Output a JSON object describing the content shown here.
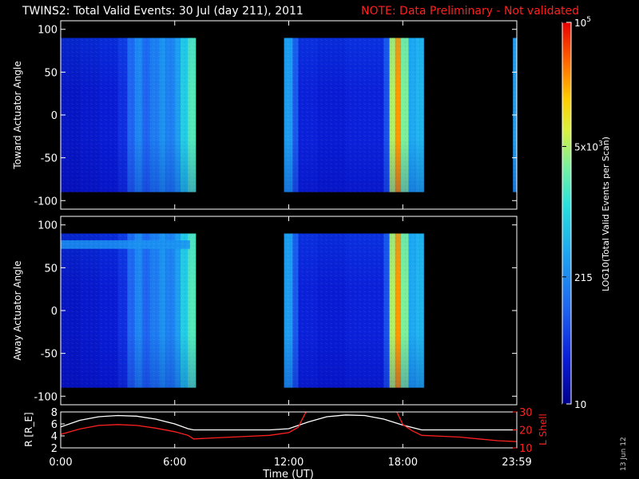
{
  "header": {
    "title": "TWINS2: Total Valid Events: 30 Jul (day 211), 2011",
    "note": "NOTE: Data Preliminary - Not validated"
  },
  "footer": {
    "stamp": "13 Jun 12"
  },
  "colors": {
    "note": "#ff2020",
    "r_line": "#ffffff",
    "lshell_line": "#ff2020",
    "background": "#000000"
  },
  "chart_data": [
    {
      "type": "heatmap",
      "ylabel": "Toward Actuator Angle",
      "ylim": [
        -110,
        110
      ],
      "yticks": [
        100,
        50,
        0,
        -50,
        -100
      ],
      "xlim": [
        0,
        24
      ],
      "data_y_range": [
        -90,
        90
      ],
      "data_coverage_hours": [
        [
          0,
          7.1
        ],
        [
          11.75,
          19.1
        ],
        [
          23.8,
          24
        ]
      ],
      "columns": [
        {
          "x0": 0.0,
          "x1": 1.0,
          "log": 1.35
        },
        {
          "x0": 1.0,
          "x1": 2.0,
          "log": 1.4
        },
        {
          "x0": 2.0,
          "x1": 3.0,
          "log": 1.45
        },
        {
          "x0": 3.0,
          "x1": 3.5,
          "log": 1.6
        },
        {
          "x0": 3.5,
          "x1": 3.9,
          "log": 2.0
        },
        {
          "x0": 3.9,
          "x1": 4.3,
          "log": 2.3
        },
        {
          "x0": 4.3,
          "x1": 4.7,
          "log": 2.0
        },
        {
          "x0": 4.7,
          "x1": 5.2,
          "log": 2.2
        },
        {
          "x0": 5.2,
          "x1": 5.5,
          "log": 2.4
        },
        {
          "x0": 5.5,
          "x1": 6.0,
          "log": 2.25
        },
        {
          "x0": 6.0,
          "x1": 6.3,
          "log": 2.5
        },
        {
          "x0": 6.3,
          "x1": 6.7,
          "log": 2.9
        },
        {
          "x0": 6.7,
          "x1": 7.1,
          "log": 3.3
        },
        {
          "x0": 11.75,
          "x1": 12.2,
          "log": 2.5
        },
        {
          "x0": 12.2,
          "x1": 12.5,
          "log": 1.9
        },
        {
          "x0": 12.5,
          "x1": 13.5,
          "log": 1.5
        },
        {
          "x0": 13.5,
          "x1": 15.0,
          "log": 1.45
        },
        {
          "x0": 15.0,
          "x1": 17.0,
          "log": 1.5
        },
        {
          "x0": 17.0,
          "x1": 17.3,
          "log": 1.85
        },
        {
          "x0": 17.3,
          "x1": 17.6,
          "log": 3.7
        },
        {
          "x0": 17.6,
          "x1": 17.9,
          "log": 4.4
        },
        {
          "x0": 17.9,
          "x1": 18.3,
          "log": 3.5
        },
        {
          "x0": 18.3,
          "x1": 18.7,
          "log": 2.6
        },
        {
          "x0": 18.7,
          "x1": 19.1,
          "log": 2.7
        },
        {
          "x0": 23.8,
          "x1": 24.0,
          "log": 2.5
        }
      ]
    },
    {
      "type": "heatmap",
      "ylabel": "Away Actuator Angle",
      "ylim": [
        -110,
        110
      ],
      "yticks": [
        100,
        50,
        0,
        -50,
        -100
      ],
      "xlim": [
        0,
        24
      ],
      "data_y_range": [
        -90,
        90
      ],
      "data_coverage_hours": [
        [
          0,
          7.1
        ],
        [
          11.75,
          19.1
        ]
      ],
      "columns": [
        {
          "x0": 0.0,
          "x1": 1.0,
          "log": 1.35
        },
        {
          "x0": 1.0,
          "x1": 2.0,
          "log": 1.4
        },
        {
          "x0": 2.0,
          "x1": 3.0,
          "log": 1.45
        },
        {
          "x0": 3.0,
          "x1": 3.5,
          "log": 1.6
        },
        {
          "x0": 3.5,
          "x1": 3.9,
          "log": 2.0
        },
        {
          "x0": 3.9,
          "x1": 4.3,
          "log": 2.3
        },
        {
          "x0": 4.3,
          "x1": 4.7,
          "log": 2.0
        },
        {
          "x0": 4.7,
          "x1": 5.2,
          "log": 2.2
        },
        {
          "x0": 5.2,
          "x1": 5.5,
          "log": 2.4
        },
        {
          "x0": 5.5,
          "x1": 6.0,
          "log": 2.25
        },
        {
          "x0": 6.0,
          "x1": 6.3,
          "log": 2.5
        },
        {
          "x0": 6.3,
          "x1": 6.7,
          "log": 2.9
        },
        {
          "x0": 6.7,
          "x1": 7.1,
          "log": 3.3
        },
        {
          "x0": 11.75,
          "x1": 12.2,
          "log": 2.5
        },
        {
          "x0": 12.2,
          "x1": 12.5,
          "log": 1.9
        },
        {
          "x0": 12.5,
          "x1": 13.5,
          "log": 1.5
        },
        {
          "x0": 13.5,
          "x1": 15.0,
          "log": 1.45
        },
        {
          "x0": 15.0,
          "x1": 17.0,
          "log": 1.5
        },
        {
          "x0": 17.0,
          "x1": 17.3,
          "log": 1.85
        },
        {
          "x0": 17.3,
          "x1": 17.6,
          "log": 3.7
        },
        {
          "x0": 17.6,
          "x1": 17.9,
          "log": 4.4
        },
        {
          "x0": 17.9,
          "x1": 18.3,
          "log": 3.5
        },
        {
          "x0": 18.3,
          "x1": 18.7,
          "log": 2.6
        },
        {
          "x0": 18.7,
          "x1": 19.1,
          "log": 2.7
        }
      ],
      "band": {
        "x0": 0.0,
        "x1": 6.8,
        "y0": 72,
        "y1": 82,
        "log": 2.4
      }
    },
    {
      "type": "line",
      "xlabel": "Time (UT)",
      "ylabel": "R [R_E]",
      "y2label": "L Shell",
      "xticks": [
        "0:00",
        "6:00",
        "12:00",
        "18:00",
        "23:59"
      ],
      "xtick_values": [
        0,
        6,
        12,
        18,
        24
      ],
      "ylim": [
        2,
        8
      ],
      "yticks": [
        2,
        4,
        6,
        8
      ],
      "y2lim": [
        10,
        30
      ],
      "y2ticks": [
        10,
        20,
        30
      ],
      "series": [
        {
          "axis": "left",
          "color": "#ffffff",
          "x": [
            0,
            1,
            2,
            3,
            4,
            5,
            6,
            6.7,
            7,
            8,
            9,
            10,
            11,
            12,
            13,
            14,
            15,
            16,
            17,
            18,
            19,
            20,
            21,
            22,
            23,
            24
          ],
          "y": [
            5.5,
            6.6,
            7.2,
            7.4,
            7.3,
            6.8,
            6.0,
            5.2,
            5.0,
            5.0,
            5.0,
            5.0,
            5.0,
            5.2,
            6.3,
            7.2,
            7.5,
            7.4,
            6.8,
            5.8,
            5.0,
            5.0,
            5.0,
            5.0,
            5.0,
            5.0
          ]
        },
        {
          "axis": "right",
          "color": "#ff2020",
          "x": [
            0,
            1,
            2,
            3,
            4,
            5,
            6,
            6.7,
            7,
            8,
            9,
            10,
            11,
            12,
            12.5,
            13,
            17.6,
            18,
            18.5,
            19,
            20,
            21,
            22,
            23,
            24
          ],
          "y": [
            17.5,
            20.5,
            22.5,
            23,
            22.5,
            21,
            19,
            17,
            15,
            15.5,
            16,
            16.5,
            17,
            18.5,
            21.5,
            32,
            32,
            23,
            19.5,
            17,
            16.5,
            16,
            15,
            14,
            13.5
          ]
        }
      ]
    }
  ],
  "colorbar": {
    "label": "LOG10(Total Valid Events per Scan)",
    "ticks": [
      {
        "log": 5,
        "base": "10",
        "exp": "5",
        "mult": ""
      },
      {
        "log": 3.699,
        "base": "10",
        "exp": "3",
        "mult": "5x"
      },
      {
        "log": 2.332,
        "text": "215"
      },
      {
        "log": 1,
        "text": "10"
      }
    ],
    "range": [
      1,
      5
    ]
  }
}
